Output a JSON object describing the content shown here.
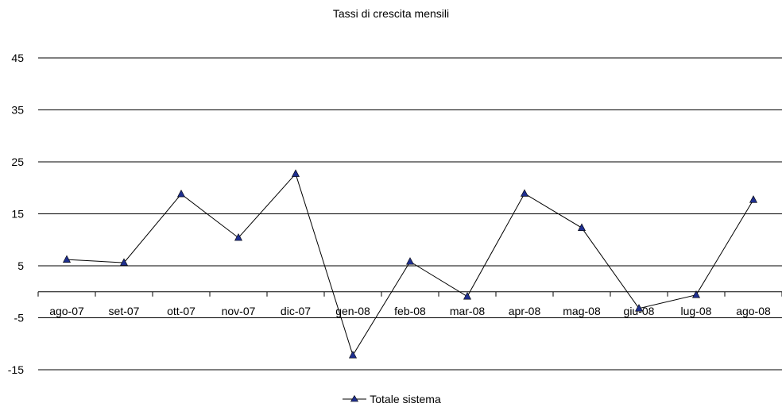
{
  "chart_data": {
    "type": "line",
    "title": "Tassi di crescita mensili",
    "xlabel": "",
    "ylabel": "",
    "categories": [
      "ago-07",
      "set-07",
      "ott-07",
      "nov-07",
      "dic-07",
      "gen-08",
      "feb-08",
      "mar-08",
      "apr-08",
      "mag-08",
      "giu-08",
      "lug-08",
      "ago-08"
    ],
    "series": [
      {
        "name": "Totale sistema",
        "values": [
          6.2,
          5.6,
          18.8,
          10.4,
          22.7,
          -12.2,
          5.8,
          -0.9,
          18.9,
          12.3,
          -3.2,
          -0.6,
          17.7
        ]
      }
    ],
    "yticks": [
      -15,
      -5,
      5,
      15,
      25,
      35,
      45
    ],
    "ylim": [
      -15,
      45
    ],
    "grid": true,
    "legend": "bottom",
    "marker": "triangle",
    "colors": {
      "line": "#000000",
      "marker": "#1f2f8f",
      "grid": "#000000"
    }
  }
}
